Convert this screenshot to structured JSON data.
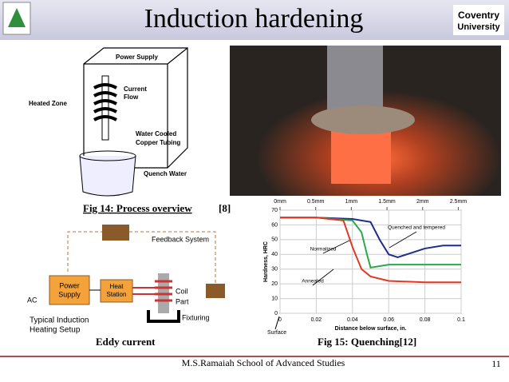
{
  "header": {
    "title": "Induction hardening",
    "logo_right": [
      "Coventry",
      "University"
    ]
  },
  "fig14": {
    "power_supply": "Power Supply",
    "current_flow": [
      "Current",
      "Flow"
    ],
    "heated_zone": "Heated Zone",
    "tubing": [
      "Water Cooled",
      "Copper Tubing"
    ],
    "quench_water": "Quench Water",
    "caption": "Fig 14: Process overview",
    "ref": "[8]"
  },
  "setup": {
    "feedback": "Feedback System",
    "power_supply": [
      "Power",
      "Supply"
    ],
    "heat_station": [
      "Heat",
      "Station"
    ],
    "coil": "Coil",
    "part": "Part",
    "ac": "AC",
    "fixturing": "Fixturing",
    "title": [
      "Typical Induction",
      "Heating Setup"
    ],
    "caption": "Eddy current"
  },
  "chart_data": {
    "type": "line",
    "xlabel": "Distance below surface, in.",
    "ylabel": "Hardness, HRC",
    "annotation": "Surface",
    "xlim": [
      0,
      0.1
    ],
    "xticks": [
      0,
      0.02,
      0.04,
      0.06,
      0.08,
      0.1
    ],
    "x2lim": [
      0,
      2.54
    ],
    "x2ticks": [
      {
        "value": 0,
        "label": "0mm"
      },
      {
        "value": 0.5,
        "label": "0.5mm"
      },
      {
        "value": 1,
        "label": "1mm"
      },
      {
        "value": 1.5,
        "label": "1.5mm"
      },
      {
        "value": 2,
        "label": "2mm"
      },
      {
        "value": 2.5,
        "label": "2.5mm"
      }
    ],
    "ylim": [
      0,
      70
    ],
    "yticks": [
      0,
      10,
      20,
      30,
      40,
      50,
      60,
      70
    ],
    "grid": true,
    "series": [
      {
        "name": "Quenched and tempered",
        "color": "#1f2d8a",
        "x": [
          0,
          0.02,
          0.04,
          0.05,
          0.055,
          0.06,
          0.065,
          0.07,
          0.08,
          0.09,
          0.1
        ],
        "values": [
          65,
          65,
          64,
          62,
          50,
          40,
          38,
          40,
          44,
          46,
          46
        ]
      },
      {
        "name": "Normalized",
        "color": "#2aa84a",
        "x": [
          0,
          0.02,
          0.04,
          0.045,
          0.048,
          0.05,
          0.06,
          0.08,
          0.1
        ],
        "values": [
          65,
          65,
          63,
          55,
          40,
          31,
          33,
          33,
          33
        ]
      },
      {
        "name": "Annealed",
        "color": "#e03a24",
        "x": [
          0,
          0.02,
          0.035,
          0.04,
          0.045,
          0.05,
          0.06,
          0.08,
          0.1
        ],
        "values": [
          65,
          65,
          63,
          45,
          30,
          25,
          22,
          21,
          21
        ]
      }
    ]
  },
  "caption15": "Fig 15: Quenching[12]",
  "footer": "M.S.Ramaiah School of Advanced Studies",
  "page": "11"
}
